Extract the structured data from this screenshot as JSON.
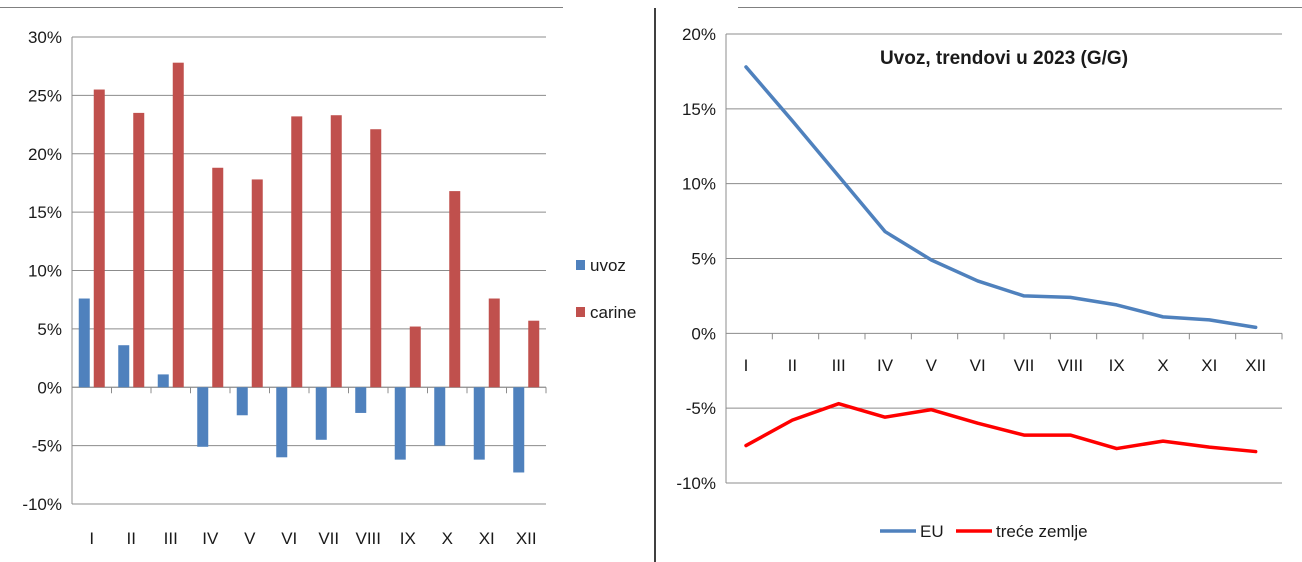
{
  "chart_data": [
    {
      "type": "bar",
      "title": "",
      "categories": [
        "I",
        "II",
        "III",
        "IV",
        "V",
        "VI",
        "VII",
        "VIII",
        "IX",
        "X",
        "XI",
        "XII"
      ],
      "series": [
        {
          "name": "uvoz",
          "color": "#4f81bd",
          "values": [
            7.6,
            3.6,
            1.1,
            -5.1,
            -2.4,
            -6.0,
            -4.5,
            -2.2,
            -6.2,
            -5.0,
            -6.2,
            -7.3
          ]
        },
        {
          "name": "carine",
          "color": "#c0504d",
          "values": [
            25.5,
            23.5,
            27.8,
            18.8,
            17.8,
            23.2,
            23.3,
            22.1,
            5.2,
            16.8,
            7.6,
            5.7
          ]
        }
      ],
      "ylim": [
        -10,
        30
      ],
      "yticks": [
        -10,
        -5,
        0,
        5,
        10,
        15,
        20,
        25,
        30
      ],
      "ytick_labels": [
        "-10%",
        "-5%",
        "0%",
        "5%",
        "10%",
        "15%",
        "20%",
        "25%",
        "30%"
      ],
      "grid": true,
      "legend": "right"
    },
    {
      "type": "line",
      "title": "Uvoz, trendovi u 2023 (G/G)",
      "categories": [
        "I",
        "II",
        "III",
        "IV",
        "V",
        "VI",
        "VII",
        "VIII",
        "IX",
        "X",
        "XI",
        "XII"
      ],
      "series": [
        {
          "name": "EU",
          "color": "#4f81bd",
          "values": [
            17.8,
            14.2,
            10.5,
            6.8,
            4.9,
            3.5,
            2.5,
            2.4,
            1.9,
            1.1,
            0.9,
            0.4
          ]
        },
        {
          "name": "treće zemlje",
          "color": "#ff0000",
          "values": [
            -7.5,
            -5.8,
            -4.7,
            -5.6,
            -5.1,
            -6.0,
            -6.8,
            -6.8,
            -7.7,
            -7.2,
            -7.6,
            -7.9
          ]
        }
      ],
      "ylim": [
        -10,
        20
      ],
      "yticks": [
        -10,
        -5,
        0,
        5,
        10,
        15,
        20
      ],
      "ytick_labels": [
        "-10%",
        "-5%",
        "0%",
        "5%",
        "10%",
        "15%",
        "20%"
      ],
      "grid": true,
      "legend": "bottom"
    }
  ]
}
